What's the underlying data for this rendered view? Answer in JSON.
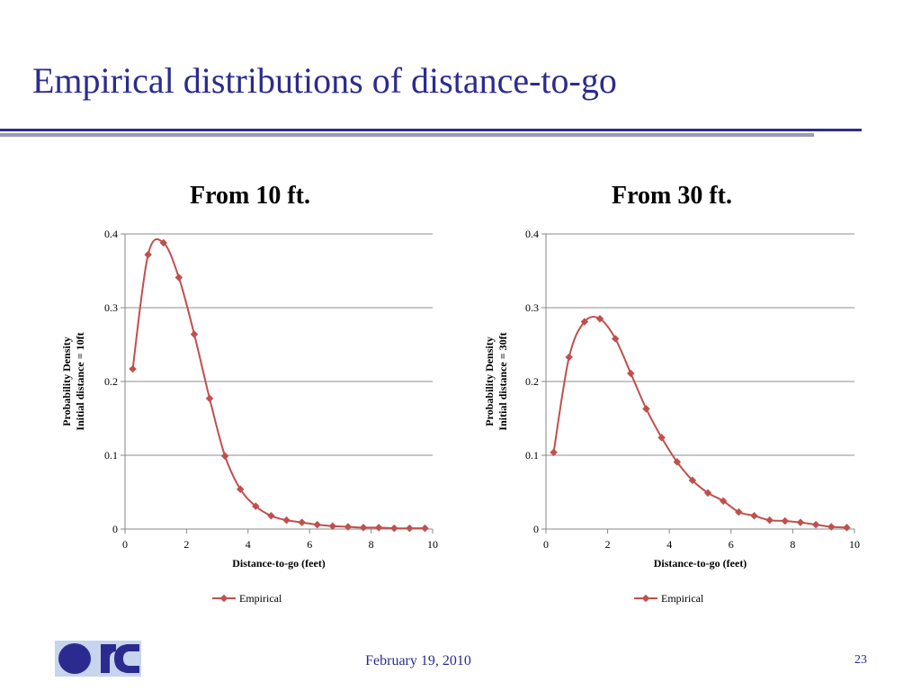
{
  "slide": {
    "title": "Empirical distributions of distance-to-go",
    "footer_date": "February 19, 2010",
    "slide_number": "23",
    "accent_color": "#2b2b8f"
  },
  "chart_data": [
    {
      "type": "line",
      "title": "From 10 ft.",
      "xlabel": "Distance-to-go (feet)",
      "ylabel_line1": "Probability Density",
      "ylabel_line2": "Initial distance = 10ft",
      "xlim": [
        0,
        10
      ],
      "ylim": [
        0,
        0.4
      ],
      "xticks": [
        "0",
        "2",
        "4",
        "6",
        "8",
        "10"
      ],
      "yticks": [
        "0",
        "0.1",
        "0.2",
        "0.3",
        "0.4"
      ],
      "grid": true,
      "legend_position": "bottom",
      "series": [
        {
          "name": "Empirical",
          "color": "#c0504d",
          "x": [
            0.25,
            0.75,
            1.25,
            1.75,
            2.25,
            2.75,
            3.25,
            3.75,
            4.25,
            4.75,
            5.25,
            5.75,
            6.25,
            6.75,
            7.25,
            7.75,
            8.25,
            8.75,
            9.25,
            9.75
          ],
          "y": [
            0.217,
            0.372,
            0.388,
            0.341,
            0.264,
            0.177,
            0.099,
            0.054,
            0.031,
            0.018,
            0.012,
            0.009,
            0.006,
            0.004,
            0.003,
            0.002,
            0.002,
            0.001,
            0.001,
            0.001
          ]
        }
      ]
    },
    {
      "type": "line",
      "title": "From 30 ft.",
      "xlabel": "Distance-to-go (feet)",
      "ylabel_line1": "Probability Density",
      "ylabel_line2": "Initial distance = 30ft",
      "xlim": [
        0,
        10
      ],
      "ylim": [
        0,
        0.4
      ],
      "xticks": [
        "0",
        "2",
        "4",
        "6",
        "8",
        "10"
      ],
      "yticks": [
        "0",
        "0.1",
        "0.2",
        "0.3",
        "0.4"
      ],
      "grid": true,
      "legend_position": "bottom",
      "series": [
        {
          "name": "Empirical",
          "color": "#c0504d",
          "x": [
            0.25,
            0.75,
            1.25,
            1.75,
            2.25,
            2.75,
            3.25,
            3.75,
            4.25,
            4.75,
            5.25,
            5.75,
            6.25,
            6.75,
            7.25,
            7.75,
            8.25,
            8.75,
            9.25,
            9.75
          ],
          "y": [
            0.104,
            0.233,
            0.281,
            0.285,
            0.258,
            0.211,
            0.163,
            0.124,
            0.091,
            0.066,
            0.049,
            0.038,
            0.023,
            0.018,
            0.012,
            0.011,
            0.009,
            0.006,
            0.003,
            0.002
          ]
        }
      ]
    }
  ]
}
